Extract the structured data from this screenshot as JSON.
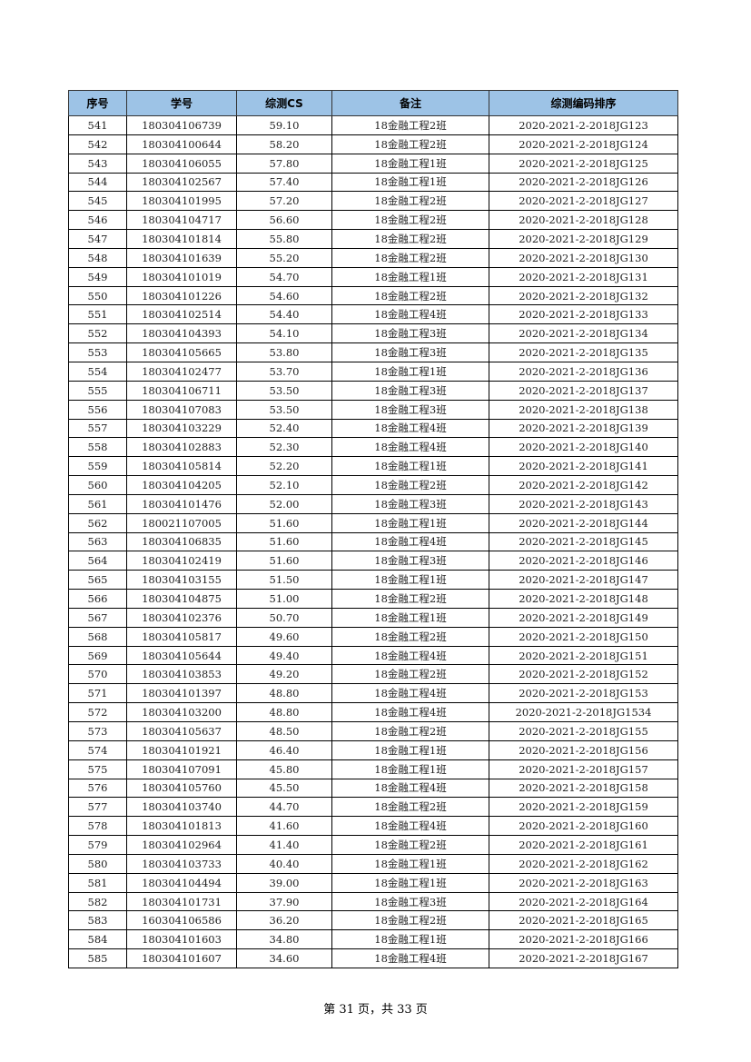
{
  "table": {
    "headers": [
      "序号",
      "学号",
      "综测CS",
      "备注",
      "综测编码排序"
    ],
    "header_bg": "#9dc3e6",
    "rows": [
      [
        "541",
        "180304106739",
        "59.10",
        "18金融工程2班",
        "2020-2021-2-2018JG123"
      ],
      [
        "542",
        "180304100644",
        "58.20",
        "18金融工程2班",
        "2020-2021-2-2018JG124"
      ],
      [
        "543",
        "180304106055",
        "57.80",
        "18金融工程1班",
        "2020-2021-2-2018JG125"
      ],
      [
        "544",
        "180304102567",
        "57.40",
        "18金融工程1班",
        "2020-2021-2-2018JG126"
      ],
      [
        "545",
        "180304101995",
        "57.20",
        "18金融工程2班",
        "2020-2021-2-2018JG127"
      ],
      [
        "546",
        "180304104717",
        "56.60",
        "18金融工程2班",
        "2020-2021-2-2018JG128"
      ],
      [
        "547",
        "180304101814",
        "55.80",
        "18金融工程2班",
        "2020-2021-2-2018JG129"
      ],
      [
        "548",
        "180304101639",
        "55.20",
        "18金融工程2班",
        "2020-2021-2-2018JG130"
      ],
      [
        "549",
        "180304101019",
        "54.70",
        "18金融工程1班",
        "2020-2021-2-2018JG131"
      ],
      [
        "550",
        "180304101226",
        "54.60",
        "18金融工程2班",
        "2020-2021-2-2018JG132"
      ],
      [
        "551",
        "180304102514",
        "54.40",
        "18金融工程4班",
        "2020-2021-2-2018JG133"
      ],
      [
        "552",
        "180304104393",
        "54.10",
        "18金融工程3班",
        "2020-2021-2-2018JG134"
      ],
      [
        "553",
        "180304105665",
        "53.80",
        "18金融工程3班",
        "2020-2021-2-2018JG135"
      ],
      [
        "554",
        "180304102477",
        "53.70",
        "18金融工程1班",
        "2020-2021-2-2018JG136"
      ],
      [
        "555",
        "180304106711",
        "53.50",
        "18金融工程3班",
        "2020-2021-2-2018JG137"
      ],
      [
        "556",
        "180304107083",
        "53.50",
        "18金融工程3班",
        "2020-2021-2-2018JG138"
      ],
      [
        "557",
        "180304103229",
        "52.40",
        "18金融工程4班",
        "2020-2021-2-2018JG139"
      ],
      [
        "558",
        "180304102883",
        "52.30",
        "18金融工程4班",
        "2020-2021-2-2018JG140"
      ],
      [
        "559",
        "180304105814",
        "52.20",
        "18金融工程1班",
        "2020-2021-2-2018JG141"
      ],
      [
        "560",
        "180304104205",
        "52.10",
        "18金融工程2班",
        "2020-2021-2-2018JG142"
      ],
      [
        "561",
        "180304101476",
        "52.00",
        "18金融工程3班",
        "2020-2021-2-2018JG143"
      ],
      [
        "562",
        "180021107005",
        "51.60",
        "18金融工程1班",
        "2020-2021-2-2018JG144"
      ],
      [
        "563",
        "180304106835",
        "51.60",
        "18金融工程4班",
        "2020-2021-2-2018JG145"
      ],
      [
        "564",
        "180304102419",
        "51.60",
        "18金融工程3班",
        "2020-2021-2-2018JG146"
      ],
      [
        "565",
        "180304103155",
        "51.50",
        "18金融工程1班",
        "2020-2021-2-2018JG147"
      ],
      [
        "566",
        "180304104875",
        "51.00",
        "18金融工程2班",
        "2020-2021-2-2018JG148"
      ],
      [
        "567",
        "180304102376",
        "50.70",
        "18金融工程1班",
        "2020-2021-2-2018JG149"
      ],
      [
        "568",
        "180304105817",
        "49.60",
        "18金融工程2班",
        "2020-2021-2-2018JG150"
      ],
      [
        "569",
        "180304105644",
        "49.40",
        "18金融工程4班",
        "2020-2021-2-2018JG151"
      ],
      [
        "570",
        "180304103853",
        "49.20",
        "18金融工程2班",
        "2020-2021-2-2018JG152"
      ],
      [
        "571",
        "180304101397",
        "48.80",
        "18金融工程4班",
        "2020-2021-2-2018JG153"
      ],
      [
        "572",
        "180304103200",
        "48.80",
        "18金融工程4班",
        "2020-2021-2-2018JG1534"
      ],
      [
        "573",
        "180304105637",
        "48.50",
        "18金融工程2班",
        "2020-2021-2-2018JG155"
      ],
      [
        "574",
        "180304101921",
        "46.40",
        "18金融工程1班",
        "2020-2021-2-2018JG156"
      ],
      [
        "575",
        "180304107091",
        "45.80",
        "18金融工程1班",
        "2020-2021-2-2018JG157"
      ],
      [
        "576",
        "180304105760",
        "45.50",
        "18金融工程4班",
        "2020-2021-2-2018JG158"
      ],
      [
        "577",
        "180304103740",
        "44.70",
        "18金融工程2班",
        "2020-2021-2-2018JG159"
      ],
      [
        "578",
        "180304101813",
        "41.60",
        "18金融工程4班",
        "2020-2021-2-2018JG160"
      ],
      [
        "579",
        "180304102964",
        "41.40",
        "18金融工程2班",
        "2020-2021-2-2018JG161"
      ],
      [
        "580",
        "180304103733",
        "40.40",
        "18金融工程1班",
        "2020-2021-2-2018JG162"
      ],
      [
        "581",
        "180304104494",
        "39.00",
        "18金融工程1班",
        "2020-2021-2-2018JG163"
      ],
      [
        "582",
        "180304101731",
        "37.90",
        "18金融工程3班",
        "2020-2021-2-2018JG164"
      ],
      [
        "583",
        "160304106586",
        "36.20",
        "18金融工程2班",
        "2020-2021-2-2018JG165"
      ],
      [
        "584",
        "180304101603",
        "34.80",
        "18金融工程1班",
        "2020-2021-2-2018JG166"
      ],
      [
        "585",
        "180304101607",
        "34.60",
        "18金融工程4班",
        "2020-2021-2-2018JG167"
      ]
    ]
  },
  "footer": {
    "page_text": "第 31 页，共 33 页"
  }
}
